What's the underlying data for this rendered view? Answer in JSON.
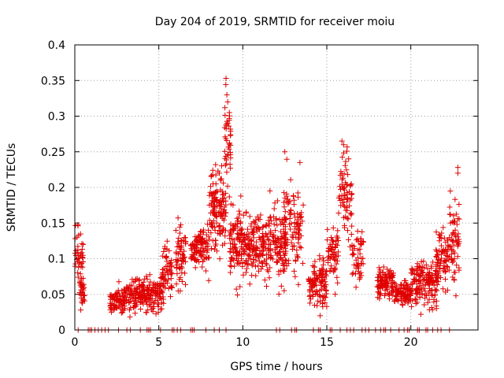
{
  "chart_data": {
    "type": "scatter",
    "title": "Day 204 of 2019, SRMTID for receiver moiu",
    "xlabel": "GPS time / hours",
    "ylabel": "SRMTID / TECUs",
    "xlim": [
      0,
      24
    ],
    "ylim": [
      0,
      0.4
    ],
    "xticks": [
      0,
      5,
      10,
      15,
      20
    ],
    "yticks": [
      0,
      0.05,
      0.1,
      0.15,
      0.2,
      0.25,
      0.3,
      0.35,
      0.4
    ],
    "ytick_labels": [
      "0",
      "0.05",
      "0.1",
      "0.15",
      "0.2",
      "0.25",
      "0.3",
      "0.35",
      "0.4"
    ],
    "grid": true,
    "marker": "+",
    "color": "#e00000",
    "clusters": [
      {
        "t_start": 0.0,
        "t_end": 0.5,
        "center": 0.1,
        "spread": 0.035,
        "n": 40
      },
      {
        "t_start": 0.3,
        "t_end": 0.6,
        "center": 0.055,
        "spread": 0.015,
        "n": 30
      },
      {
        "t_start": 2.1,
        "t_end": 3.0,
        "center": 0.04,
        "spread": 0.012,
        "n": 80
      },
      {
        "t_start": 3.0,
        "t_end": 4.2,
        "center": 0.05,
        "spread": 0.015,
        "n": 100
      },
      {
        "t_start": 4.0,
        "t_end": 5.3,
        "center": 0.05,
        "spread": 0.018,
        "n": 120
      },
      {
        "t_start": 5.2,
        "t_end": 5.8,
        "center": 0.085,
        "spread": 0.025,
        "n": 50
      },
      {
        "t_start": 6.0,
        "t_end": 6.6,
        "center": 0.1,
        "spread": 0.03,
        "n": 60
      },
      {
        "t_start": 6.9,
        "t_end": 8.0,
        "center": 0.115,
        "spread": 0.02,
        "n": 110
      },
      {
        "t_start": 8.0,
        "t_end": 9.0,
        "center": 0.17,
        "spread": 0.04,
        "n": 130
      },
      {
        "t_start": 8.9,
        "t_end": 9.3,
        "center": 0.27,
        "spread": 0.04,
        "n": 40
      },
      {
        "t_start": 9.2,
        "t_end": 10.0,
        "center": 0.12,
        "spread": 0.035,
        "n": 90
      },
      {
        "t_start": 9.9,
        "t_end": 11.5,
        "center": 0.115,
        "spread": 0.03,
        "n": 170
      },
      {
        "t_start": 11.5,
        "t_end": 12.6,
        "center": 0.12,
        "spread": 0.035,
        "n": 120
      },
      {
        "t_start": 12.4,
        "t_end": 13.6,
        "center": 0.14,
        "spread": 0.045,
        "n": 100
      },
      {
        "t_start": 13.9,
        "t_end": 15.0,
        "center": 0.065,
        "spread": 0.022,
        "n": 110
      },
      {
        "t_start": 15.0,
        "t_end": 15.7,
        "center": 0.11,
        "spread": 0.03,
        "n": 60
      },
      {
        "t_start": 15.7,
        "t_end": 16.5,
        "center": 0.19,
        "spread": 0.04,
        "n": 70
      },
      {
        "t_start": 16.5,
        "t_end": 17.2,
        "center": 0.1,
        "spread": 0.03,
        "n": 50
      },
      {
        "t_start": 18.0,
        "t_end": 19.0,
        "center": 0.065,
        "spread": 0.015,
        "n": 110
      },
      {
        "t_start": 19.0,
        "t_end": 20.0,
        "center": 0.05,
        "spread": 0.012,
        "n": 90
      },
      {
        "t_start": 20.0,
        "t_end": 21.6,
        "center": 0.065,
        "spread": 0.02,
        "n": 160
      },
      {
        "t_start": 21.5,
        "t_end": 22.3,
        "center": 0.1,
        "spread": 0.03,
        "n": 80
      },
      {
        "t_start": 22.3,
        "t_end": 22.9,
        "center": 0.13,
        "spread": 0.04,
        "n": 60
      }
    ],
    "peaks": [
      {
        "x": 9.0,
        "y": 0.353
      },
      {
        "x": 9.05,
        "y": 0.33
      },
      {
        "x": 9.1,
        "y": 0.32
      },
      {
        "x": 9.2,
        "y": 0.305
      },
      {
        "x": 8.4,
        "y": 0.205
      },
      {
        "x": 8.6,
        "y": 0.22
      },
      {
        "x": 12.5,
        "y": 0.25
      },
      {
        "x": 13.4,
        "y": 0.235
      },
      {
        "x": 15.9,
        "y": 0.265
      },
      {
        "x": 16.0,
        "y": 0.26
      },
      {
        "x": 16.3,
        "y": 0.24
      },
      {
        "x": 22.8,
        "y": 0.228
      },
      {
        "x": 22.8,
        "y": 0.22
      },
      {
        "x": 14.6,
        "y": 0.02
      },
      {
        "x": 20.6,
        "y": 0.022
      }
    ],
    "zero_points": [
      0.2,
      0.8,
      0.9,
      1.0,
      1.2,
      1.4,
      1.6,
      1.8,
      2.0,
      2.6,
      3.1,
      3.3,
      3.9,
      4.3,
      4.4,
      4.5,
      5.1,
      5.8,
      5.9,
      6.1,
      6.3,
      6.9,
      7.0,
      7.1,
      7.8,
      8.3,
      8.6,
      9.0,
      12.0,
      12.2,
      12.9,
      13.1,
      13.2,
      14.2,
      14.5,
      14.6,
      15.2,
      15.3,
      15.8,
      16.2,
      16.4,
      16.6,
      17.1,
      17.3,
      17.5,
      17.9,
      18.2,
      18.4,
      18.5,
      18.8,
      19.3,
      19.6,
      19.8,
      19.9,
      20.4,
      20.5,
      20.9,
      21.0,
      21.3,
      21.6,
      21.8,
      22.3
    ]
  }
}
